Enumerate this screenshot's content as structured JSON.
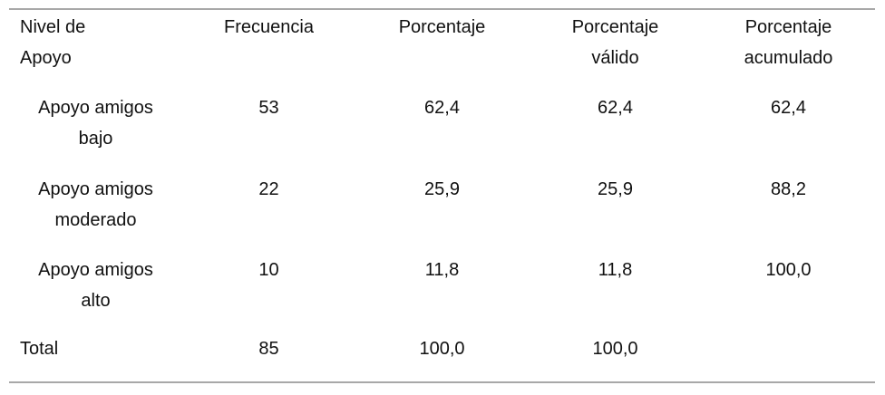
{
  "table": {
    "headers": [
      [
        "Nivel de",
        "Apoyo"
      ],
      [
        "Frecuencia"
      ],
      [
        "Porcentaje"
      ],
      [
        "Porcentaje",
        "válido"
      ],
      [
        "Porcentaje",
        "acumulado"
      ]
    ],
    "rows": [
      {
        "label": [
          "Apoyo amigos",
          "bajo"
        ],
        "frecuencia": "53",
        "porcentaje": "62,4",
        "valido": "62,4",
        "acumulado": "62,4"
      },
      {
        "label": [
          "Apoyo amigos",
          "moderado"
        ],
        "frecuencia": "22",
        "porcentaje": "25,9",
        "valido": "25,9",
        "acumulado": "88,2"
      },
      {
        "label": [
          "Apoyo amigos",
          "alto"
        ],
        "frecuencia": "10",
        "porcentaje": "11,8",
        "valido": "11,8",
        "acumulado": "100,0"
      }
    ],
    "total": {
      "label": "Total",
      "frecuencia": "85",
      "porcentaje": "100,0",
      "valido": "100,0",
      "acumulado": ""
    }
  }
}
